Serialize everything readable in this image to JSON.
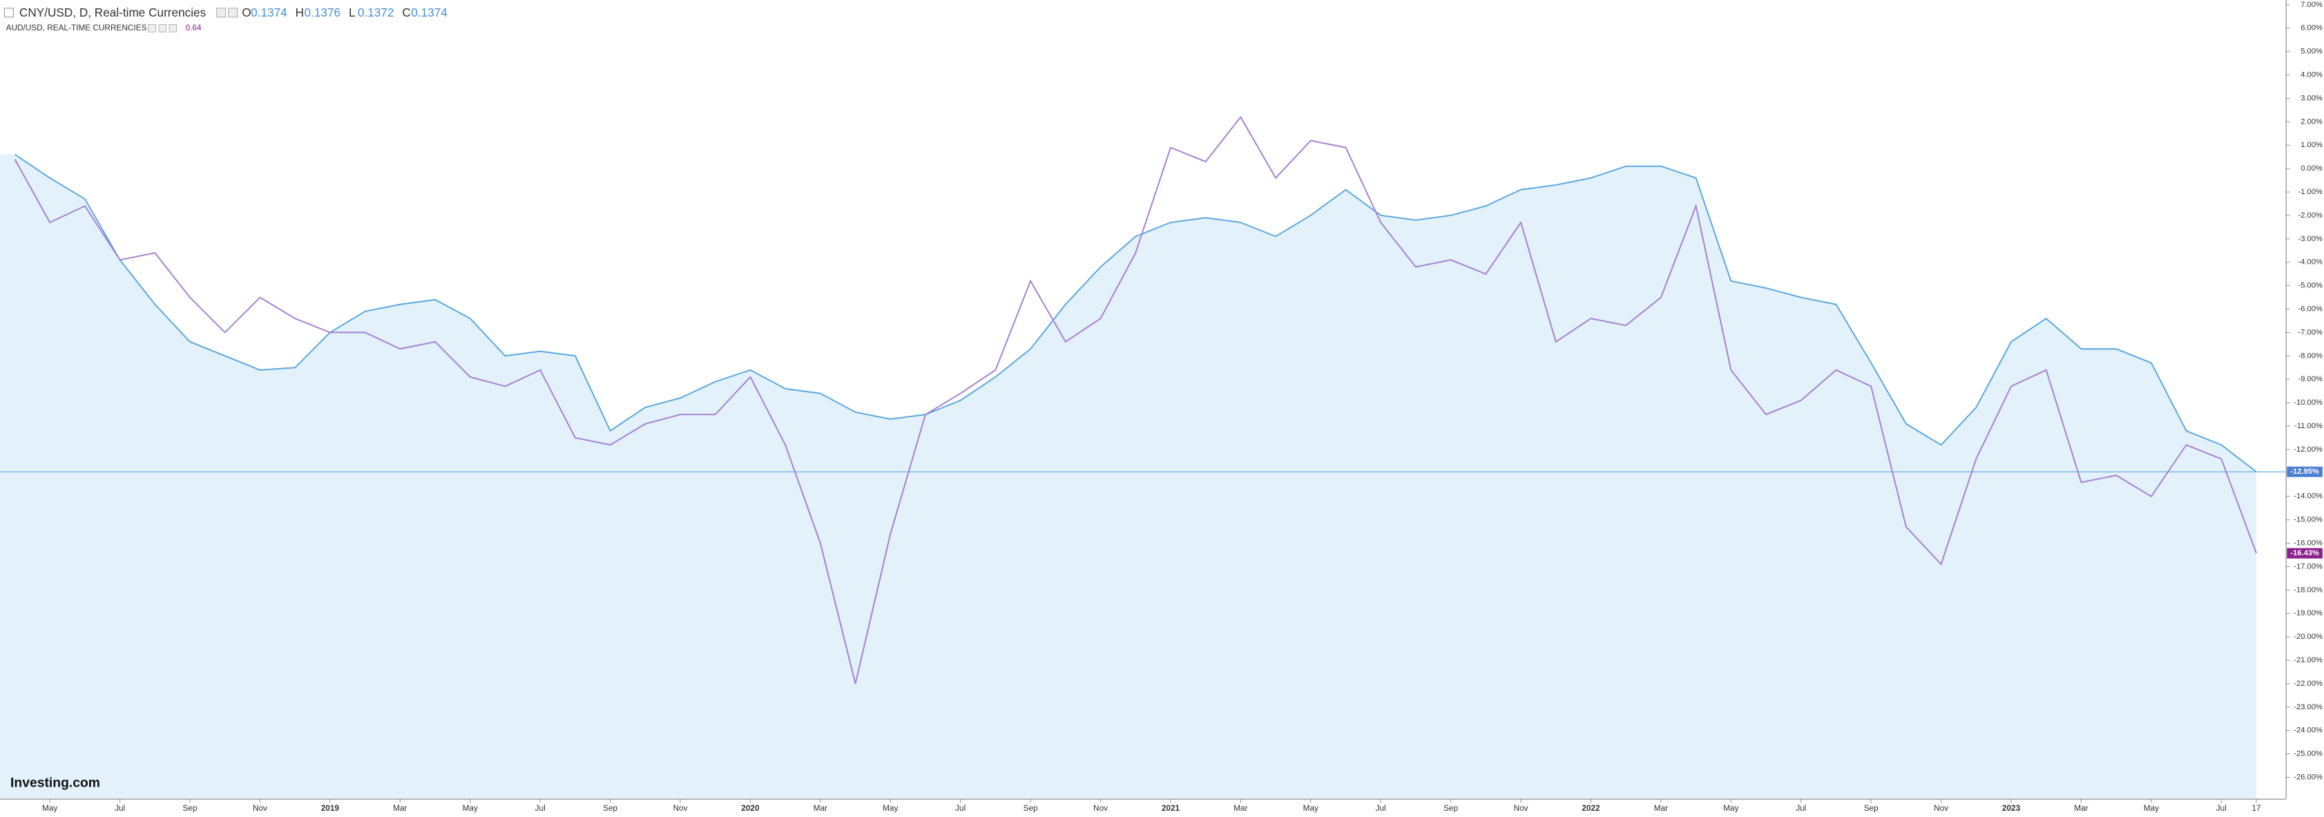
{
  "chart_data": {
    "type": "line",
    "title": "CNY/USD, D, Real-time Currencies",
    "ohlc": [
      {
        "label": "O",
        "value": "0.1374"
      },
      {
        "label": "H",
        "value": "0.1376"
      },
      {
        "label": "L",
        "value": "0.1372"
      },
      {
        "label": "C",
        "value": "0.1374"
      }
    ],
    "compare_title": "AUD/USD, REAL-TIME CURRENCIES",
    "compare_value": "0.64",
    "logo": "Investing.com",
    "categories": [
      null,
      "May",
      null,
      "Jul",
      null,
      "Sep",
      null,
      "Nov",
      null,
      "2019",
      null,
      "Mar",
      null,
      "May",
      null,
      "Jul",
      null,
      "Sep",
      null,
      "Nov",
      null,
      "2020",
      null,
      "Mar",
      null,
      "May",
      null,
      "Jul",
      null,
      "Sep",
      null,
      "Nov",
      null,
      "2021",
      null,
      "Mar",
      null,
      "May",
      null,
      "Jul",
      null,
      "Sep",
      null,
      "Nov",
      null,
      "2022",
      null,
      "Mar",
      null,
      "May",
      null,
      "Jul",
      null,
      "Sep",
      null,
      "Nov",
      null,
      "2023",
      null,
      "Mar",
      null,
      "May",
      null,
      "Jul",
      "17"
    ],
    "series": [
      {
        "name": "CNY/USD",
        "color": "#5aa6df",
        "fill": "#e2f1fa",
        "last_label": "-12.95%",
        "values": [
          0.6,
          -0.4,
          -1.3,
          -3.9,
          -5.8,
          -7.4,
          -8.0,
          -8.6,
          -8.5,
          -7.0,
          -6.1,
          -5.8,
          -5.6,
          -6.4,
          -8.0,
          -7.8,
          -8.0,
          -11.2,
          -10.2,
          -9.8,
          -9.1,
          -8.6,
          -9.4,
          -9.6,
          -10.4,
          -10.7,
          -10.5,
          -9.9,
          -8.9,
          -7.7,
          -5.8,
          -4.2,
          -2.9,
          -2.3,
          -2.1,
          -2.3,
          -2.9,
          -2.0,
          -0.9,
          -2.0,
          -2.2,
          -2.0,
          -1.6,
          -0.9,
          -0.7,
          -0.4,
          0.1,
          0.1,
          -0.4,
          -4.8,
          -5.1,
          -5.5,
          -5.8,
          -8.3,
          -10.9,
          -11.8,
          -10.2,
          -7.4,
          -6.4,
          -7.7,
          -7.7,
          -8.3,
          -11.2,
          -11.8,
          -12.95
        ]
      },
      {
        "name": "AUD/USD",
        "color": "#a57fd0",
        "last_label": "-16.43%",
        "values": [
          0.4,
          -2.3,
          -1.6,
          -3.9,
          -3.6,
          -5.5,
          -7.0,
          -5.5,
          -6.4,
          -7.0,
          -7.0,
          -7.7,
          -7.4,
          -8.9,
          -9.3,
          -8.6,
          -11.5,
          -11.8,
          -10.9,
          -10.5,
          -10.5,
          -8.9,
          -11.8,
          -16.0,
          -22.0,
          -15.6,
          -10.5,
          -9.6,
          -8.6,
          -4.8,
          -7.4,
          -6.4,
          -3.6,
          0.9,
          0.3,
          2.2,
          -0.4,
          1.2,
          0.9,
          -2.3,
          -4.2,
          -3.9,
          -4.5,
          -2.3,
          -7.4,
          -6.4,
          -6.7,
          -5.5,
          -1.6,
          -8.6,
          -10.5,
          -9.9,
          -8.6,
          -9.3,
          -15.3,
          -16.9,
          -12.4,
          -9.3,
          -8.6,
          -13.4,
          -13.1,
          -14.0,
          -11.8,
          -12.4,
          -16.43
        ]
      }
    ],
    "ylim": [
      -26.9,
      7.2
    ],
    "yticks": [
      {
        "value": 7,
        "label": "7.00%"
      },
      {
        "value": 6,
        "label": "6.00%"
      },
      {
        "value": 5,
        "label": "5.00%"
      },
      {
        "value": 4,
        "label": "4.00%"
      },
      {
        "value": 3,
        "label": "3.00%"
      },
      {
        "value": 2,
        "label": "2.00%"
      },
      {
        "value": 1,
        "label": "1.00%"
      },
      {
        "value": 0,
        "label": "0.00%"
      },
      {
        "value": -1,
        "label": "-1.00%"
      },
      {
        "value": -2,
        "label": "-2.00%"
      },
      {
        "value": -3,
        "label": "-3.00%"
      },
      {
        "value": -4,
        "label": "-4.00%"
      },
      {
        "value": -5,
        "label": "-5.00%"
      },
      {
        "value": -6,
        "label": "-6.00%"
      },
      {
        "value": -7,
        "label": "-7.00%"
      },
      {
        "value": -8,
        "label": "-8.00%"
      },
      {
        "value": -9,
        "label": "-9.00%"
      },
      {
        "value": -10,
        "label": "-10.00%"
      },
      {
        "value": -11,
        "label": "-11.00%"
      },
      {
        "value": -12,
        "label": "-12.00%"
      },
      {
        "value": -13,
        "label": "-13.00%"
      },
      {
        "value": -14,
        "label": "-14.00%"
      },
      {
        "value": -15,
        "label": "-15.00%"
      },
      {
        "value": -16,
        "label": "-16.00%"
      },
      {
        "value": -17,
        "label": "-17.00%"
      },
      {
        "value": -18,
        "label": "-18.00%"
      },
      {
        "value": -19,
        "label": "-19.00%"
      },
      {
        "value": -20,
        "label": "-20.00%"
      },
      {
        "value": -21,
        "label": "-21.00%"
      },
      {
        "value": -22,
        "label": "-22.00%"
      },
      {
        "value": -23,
        "label": "-23.00%"
      },
      {
        "value": -24,
        "label": "-24.00%"
      },
      {
        "value": -25,
        "label": "-25.00%"
      },
      {
        "value": -26,
        "label": "-26.00%"
      }
    ]
  }
}
